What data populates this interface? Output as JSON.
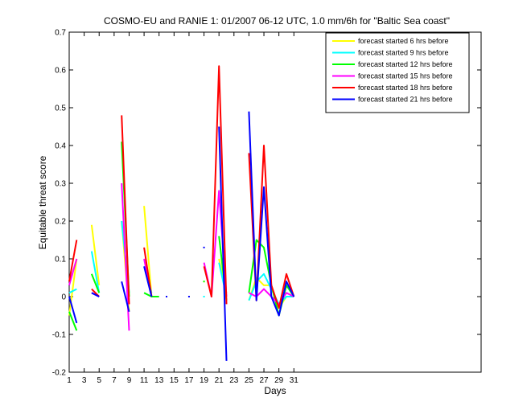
{
  "chart_data": {
    "type": "line",
    "title": "COSMO-EU and RANIE 1: 01/2007 06-12 UTC, 1.0 mm/6h for \"Baltic Sea coast\"",
    "xlabel": "Days",
    "ylabel": "Equitable threat score",
    "xlim": [
      1,
      56
    ],
    "ylim": [
      -0.2,
      0.7
    ],
    "xticks": [
      1,
      3,
      5,
      7,
      9,
      11,
      13,
      15,
      17,
      19,
      21,
      23,
      25,
      27,
      29,
      31
    ],
    "yticks": [
      -0.2,
      -0.1,
      0,
      0.1,
      0.2,
      0.3,
      0.4,
      0.5,
      0.6,
      0.7
    ],
    "grid": false,
    "legend_position": "top-right",
    "x": [
      1,
      2,
      3,
      4,
      5,
      6,
      7,
      8,
      9,
      10,
      11,
      12,
      13,
      14,
      15,
      16,
      17,
      18,
      19,
      20,
      21,
      22,
      23,
      24,
      25,
      26,
      27,
      28,
      29,
      30,
      31
    ],
    "series": [
      {
        "name": "forecast started  6 hrs before",
        "color": "#ffff00",
        "values": [
          -0.05,
          0.1,
          null,
          0.19,
          0.03,
          null,
          null,
          0.2,
          -0.04,
          null,
          0.24,
          0.0,
          null,
          null,
          null,
          null,
          null,
          null,
          0.04,
          null,
          0.1,
          0.01,
          null,
          null,
          -0.01,
          0.05,
          0.03,
          0.03,
          -0.03,
          0.0,
          0.0
        ]
      },
      {
        "name": "forecast started  9 hrs before",
        "color": "#00ffff",
        "values": [
          0.01,
          0.02,
          null,
          0.12,
          0.01,
          null,
          null,
          0.2,
          0.01,
          null,
          0.08,
          0.01,
          null,
          null,
          null,
          null,
          null,
          null,
          0.0,
          null,
          0.09,
          0.0,
          null,
          null,
          -0.01,
          0.04,
          0.06,
          0.02,
          -0.02,
          0.0,
          0.0
        ]
      },
      {
        "name": "forecast started 12 hrs before",
        "color": "#00ff00",
        "values": [
          -0.04,
          -0.09,
          null,
          0.06,
          0.01,
          null,
          null,
          0.41,
          0.0,
          null,
          0.01,
          0.0,
          0.0,
          null,
          null,
          null,
          null,
          null,
          0.04,
          null,
          0.16,
          -0.01,
          null,
          null,
          0.01,
          0.15,
          0.13,
          0.03,
          -0.05,
          0.03,
          0.0
        ]
      },
      {
        "name": "forecast started 15 hrs before",
        "color": "#ff00ff",
        "values": [
          0.03,
          0.1,
          null,
          0.01,
          0.0,
          null,
          null,
          0.3,
          -0.09,
          null,
          0.1,
          0.0,
          null,
          null,
          null,
          null,
          null,
          null,
          0.09,
          0.0,
          0.28,
          0.0,
          null,
          null,
          0.01,
          0.0,
          0.02,
          0.0,
          -0.02,
          0.01,
          0.0
        ]
      },
      {
        "name": "forecast started 18 hrs before",
        "color": "#ff0000",
        "values": [
          0.04,
          0.15,
          null,
          0.02,
          0.0,
          null,
          null,
          0.48,
          -0.02,
          null,
          0.13,
          0.0,
          null,
          null,
          null,
          null,
          null,
          null,
          0.08,
          0.0,
          0.61,
          -0.02,
          null,
          null,
          0.38,
          -0.01,
          0.4,
          0.03,
          -0.03,
          0.06,
          0.0
        ]
      },
      {
        "name": "forecast started 21 hrs before",
        "color": "#0000ff",
        "values": [
          0.0,
          -0.07,
          null,
          0.01,
          0.0,
          null,
          null,
          0.04,
          -0.04,
          null,
          0.08,
          0.0,
          null,
          0.0,
          null,
          null,
          0.0,
          null,
          0.13,
          null,
          0.45,
          -0.17,
          null,
          null,
          0.49,
          -0.01,
          0.29,
          0.0,
          -0.05,
          0.04,
          0.0
        ]
      }
    ]
  }
}
